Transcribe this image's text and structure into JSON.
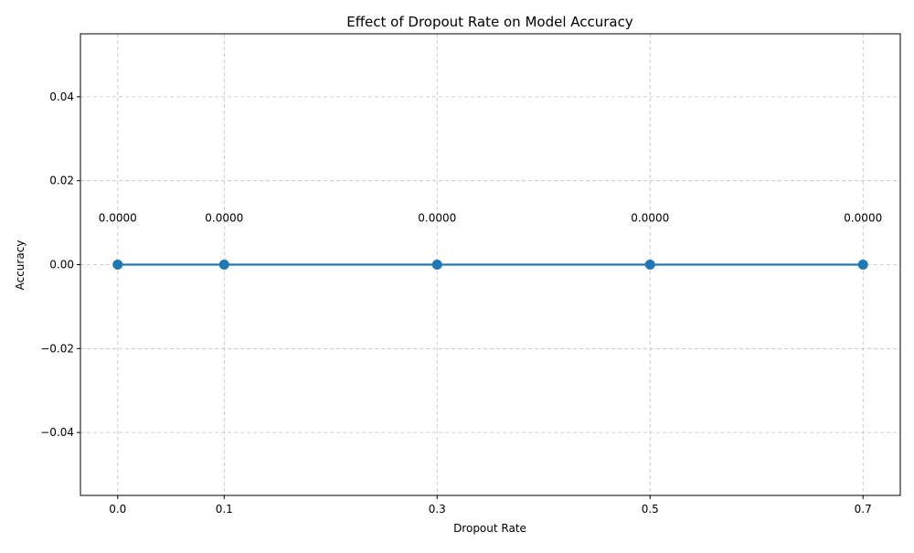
{
  "chart_data": {
    "type": "line",
    "title": "Effect of Dropout Rate on Model Accuracy",
    "xlabel": "Dropout Rate",
    "ylabel": "Accuracy",
    "x": [
      0.0,
      0.1,
      0.3,
      0.5,
      0.7
    ],
    "x_tick_labels": [
      "0.0",
      "0.1",
      "0.3",
      "0.5",
      "0.7"
    ],
    "y_ticks": [
      -0.04,
      -0.02,
      0.0,
      0.02,
      0.04
    ],
    "y_tick_labels": [
      "−0.04",
      "−0.02",
      "0.00",
      "0.02",
      "0.04"
    ],
    "xlim": [
      -0.035,
      0.735
    ],
    "ylim": [
      -0.055,
      0.055
    ],
    "series": [
      {
        "values": [
          0.0,
          0.0,
          0.0,
          0.0,
          0.0
        ],
        "data_labels": [
          "0.0000",
          "0.0000",
          "0.0000",
          "0.0000",
          "0.0000"
        ],
        "color": "#1f77b4",
        "marker": "circle"
      }
    ],
    "grid": true,
    "grid_style": "dashed",
    "legend": "none"
  }
}
